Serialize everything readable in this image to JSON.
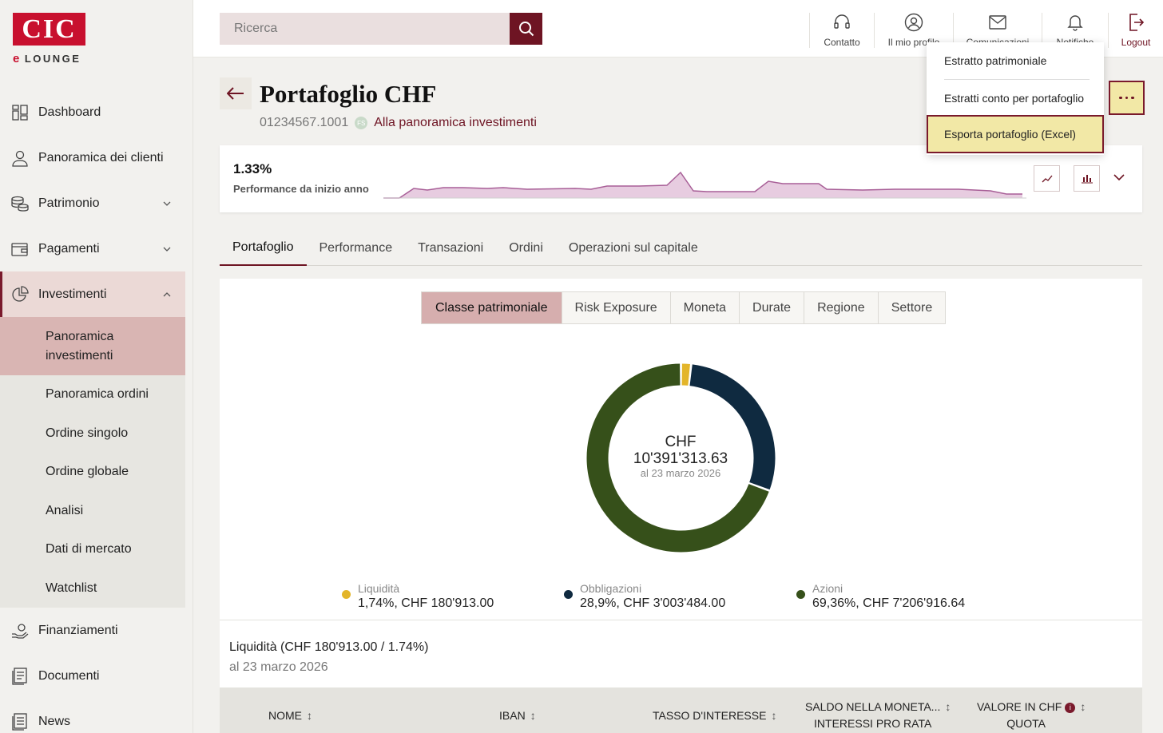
{
  "brand": {
    "logo": "CIC",
    "sub": "LOUNGE",
    "e": "e"
  },
  "sidebar": {
    "items": [
      {
        "label": "Dashboard",
        "icon": "dashboard-icon"
      },
      {
        "label": "Panoramica dei clienti",
        "icon": "clients-icon"
      },
      {
        "label": "Patrimonio",
        "icon": "coins-icon"
      },
      {
        "label": "Pagamenti",
        "icon": "payments-icon"
      },
      {
        "label": "Investimenti",
        "icon": "pie-chart-icon"
      },
      {
        "label": "Finanziamenti",
        "icon": "financing-icon"
      },
      {
        "label": "Documenti",
        "icon": "documents-icon"
      },
      {
        "label": "News",
        "icon": "news-icon"
      }
    ],
    "subitems": [
      "Panoramica investimenti",
      "Panoramica ordini",
      "Ordine singolo",
      "Ordine globale",
      "Analisi",
      "Dati di mercato",
      "Watchlist"
    ]
  },
  "search": {
    "placeholder": "Ricerca"
  },
  "topnav": {
    "contact": "Contatto",
    "profile": "Il mio profilo",
    "messages": "Comunicazioni",
    "notifications": "Notifiche",
    "logout": "Logout"
  },
  "menu": {
    "items": [
      "Estratto patrimoniale",
      "Estratti conto per portafoglio",
      "Esporta portafoglio (Excel)"
    ]
  },
  "header": {
    "title": "Portafoglio CHF",
    "number": "01234567.1001",
    "badge": "FS",
    "link": "Alla panoramica investimenti"
  },
  "performance": {
    "value": "1.33%",
    "label": "Performance da inizio anno"
  },
  "tabs": [
    "Portafoglio",
    "Performance",
    "Transazioni",
    "Ordini",
    "Operazioni sul capitale"
  ],
  "segments": [
    "Classe patrimoniale",
    "Risk Exposure",
    "Moneta",
    "Durate",
    "Regione",
    "Settore"
  ],
  "donut": {
    "currency": "CHF",
    "amount": "10'391'313.63",
    "date": "al 23 marzo 2026",
    "slices": [
      {
        "name": "Liquidità",
        "pct": 1.74,
        "color": "#e3b52a"
      },
      {
        "name": "Obbligazioni",
        "pct": 28.9,
        "color": "#0f2a40"
      },
      {
        "name": "Azioni",
        "pct": 69.36,
        "color": "#36501a"
      }
    ]
  },
  "legend": [
    {
      "name": "Liquidità",
      "value": "1,74%, CHF 180'913.00",
      "color": "#e3b52a"
    },
    {
      "name": "Obbligazioni",
      "value": "28,9%, CHF 3'003'484.00",
      "color": "#0f2a40"
    },
    {
      "name": "Azioni",
      "value": "69,36%, CHF 7'206'916.64",
      "color": "#36501a"
    }
  ],
  "section": {
    "title": "Liquidità (CHF 180'913.00 / 1.74%)",
    "date": "al 23 marzo 2026"
  },
  "table": {
    "col1": "NOME",
    "col2": "IBAN",
    "col3": "TASSO D'INTERESSE",
    "col4a": "SALDO NELLA MONETA...",
    "col4b": "INTERESSI PRO RATA",
    "col5a": "VALORE IN CHF",
    "col5b": "QUOTA",
    "info": "i"
  },
  "icons": {
    "sort": "↕"
  }
}
